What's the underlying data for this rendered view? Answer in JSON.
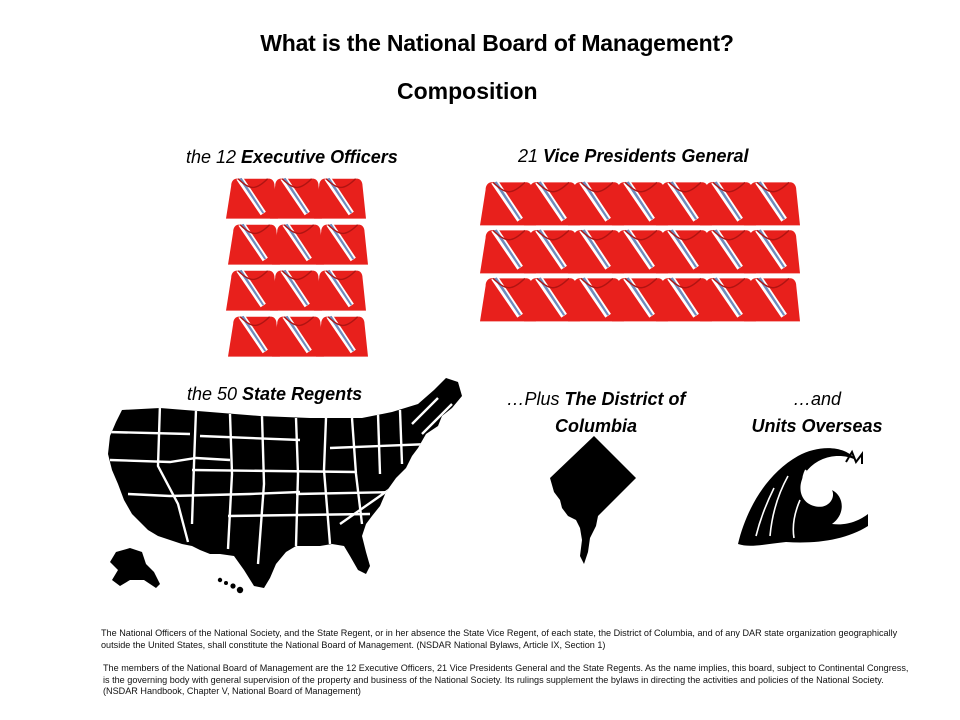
{
  "title": "What is the National Board of Management?",
  "subtitle": "Composition",
  "groups": {
    "executive": {
      "prefix": "the 12 ",
      "emphasis": "Executive Officers",
      "count": 12,
      "icon": "sash-icon"
    },
    "vice_presidents": {
      "prefix": "21 ",
      "emphasis": "Vice Presidents General",
      "count": 21,
      "icon": "sash-icon"
    },
    "states": {
      "prefix": "the 50 ",
      "emphasis": "State Regents",
      "icon": "us-map-icon"
    },
    "dc": {
      "prefix": "…Plus ",
      "emphasis": "The District of Columbia",
      "icon": "dc-map-icon"
    },
    "overseas": {
      "prefix": "…and",
      "emphasis": "Units Overseas",
      "icon": "wave-icon"
    }
  },
  "colors": {
    "sash_red": "#e8201c",
    "sash_stripe_blue": "#6f8bbd",
    "sash_stripe_white": "#ffffff",
    "map_fill": "#000000"
  },
  "footnotes": {
    "bylaws": "The National Officers of the National Society, and the State Regent, or in her absence the State Vice Regent, of each state, the District of Columbia, and of any DAR state organization geographically outside the United States, shall constitute the National Board of Management. (NSDAR National Bylaws, Article IX, Section 1)",
    "handbook": "The members of the National Board of Management are the 12 Executive Officers, 21 Vice Presidents General and the State Regents. As the name implies, this board, subject to Continental Congress, is the governing body with general supervision of the property and business of the National Society. Its rulings supplement the bylaws in directing the activities and policies of the National Society. (NSDAR Handbook, Chapter V, National Board of Management)"
  }
}
